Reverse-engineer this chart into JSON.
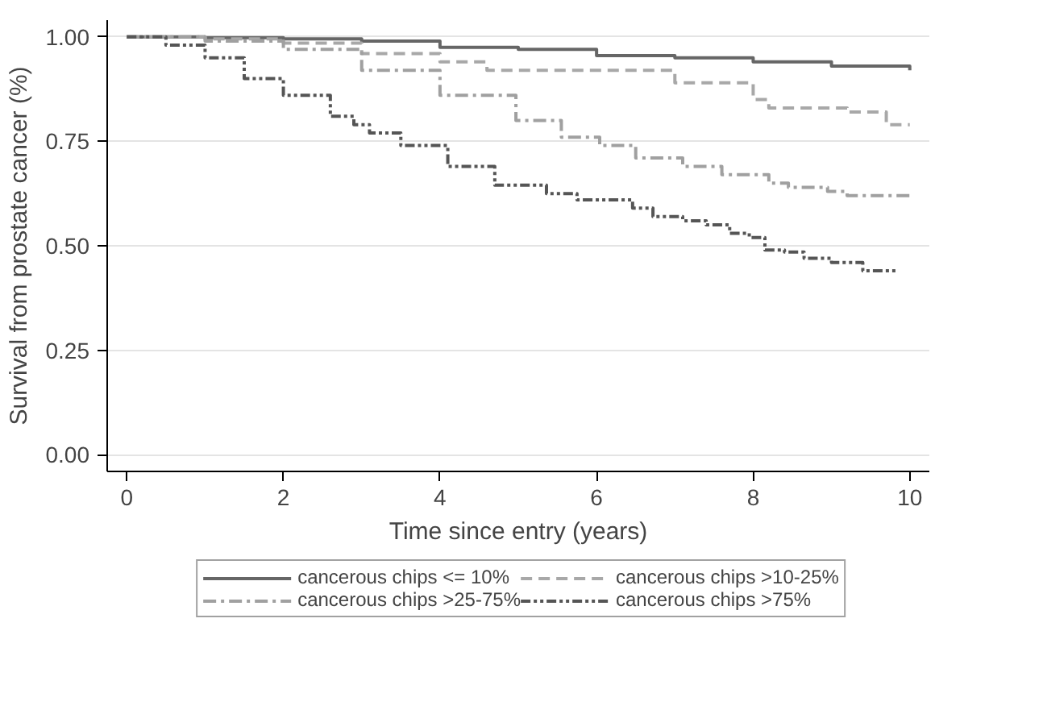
{
  "chart_data": {
    "type": "step",
    "xlabel": "Time since entry (years)",
    "ylabel": "Survival from prostate cancer (%)",
    "xlim": [
      -0.25,
      10.25
    ],
    "ylim": [
      -0.04,
      1.04
    ],
    "xticks": [
      0,
      2,
      4,
      6,
      8,
      10
    ],
    "yticks": [
      {
        "value": 0,
        "label": "0.00"
      },
      {
        "value": 0.25,
        "label": "0.25"
      },
      {
        "value": 0.5,
        "label": "0.50"
      },
      {
        "value": 0.75,
        "label": "0.75"
      },
      {
        "value": 1,
        "label": "1.00"
      }
    ],
    "grid": "y",
    "legend": "bottom",
    "series": [
      {
        "name": "cancerous chips <= 10%",
        "color": "#666666",
        "line_style": "solid",
        "x": [
          0,
          1,
          2,
          3,
          4,
          5,
          6,
          7,
          8,
          9,
          10
        ],
        "values": [
          1,
          0.998,
          0.995,
          0.99,
          0.975,
          0.97,
          0.955,
          0.95,
          0.94,
          0.93,
          0.92
        ]
      },
      {
        "name": "cancerous chips >10-25%",
        "color": "#a8a8a8",
        "line_style": "dashed",
        "x": [
          0,
          1,
          2,
          3,
          4,
          4.6,
          6,
          7,
          8,
          8.2,
          9.2,
          9.7,
          10
        ],
        "values": [
          1,
          0.995,
          0.985,
          0.96,
          0.94,
          0.92,
          0.92,
          0.89,
          0.85,
          0.83,
          0.82,
          0.79,
          0.79
        ]
      },
      {
        "name": "cancerous chips >25-75%",
        "color": "#a0a0a0",
        "line_style": "dashdot",
        "x": [
          0,
          1,
          2,
          3,
          4,
          4.97,
          5.55,
          6.04,
          6.5,
          7.1,
          7.6,
          8.2,
          8.45,
          8.95,
          9.2,
          10
        ],
        "values": [
          1,
          0.99,
          0.97,
          0.92,
          0.86,
          0.8,
          0.76,
          0.74,
          0.71,
          0.69,
          0.67,
          0.65,
          0.64,
          0.63,
          0.62,
          0.62
        ]
      },
      {
        "name": "cancerous chips >75%",
        "color": "#555555",
        "line_style": "longdashdot",
        "x": [
          0,
          0.5,
          1,
          1.5,
          2,
          2.6,
          2.9,
          3.1,
          3.5,
          4.1,
          4.7,
          5.36,
          5.75,
          6.46,
          6.72,
          7.1,
          7.4,
          7.7,
          7.95,
          8.15,
          8.4,
          8.65,
          9,
          9.4,
          9.85
        ],
        "values": [
          1,
          0.98,
          0.95,
          0.9,
          0.86,
          0.81,
          0.79,
          0.77,
          0.74,
          0.69,
          0.645,
          0.625,
          0.61,
          0.59,
          0.57,
          0.56,
          0.55,
          0.53,
          0.52,
          0.49,
          0.485,
          0.47,
          0.46,
          0.44,
          0.44
        ]
      }
    ]
  }
}
